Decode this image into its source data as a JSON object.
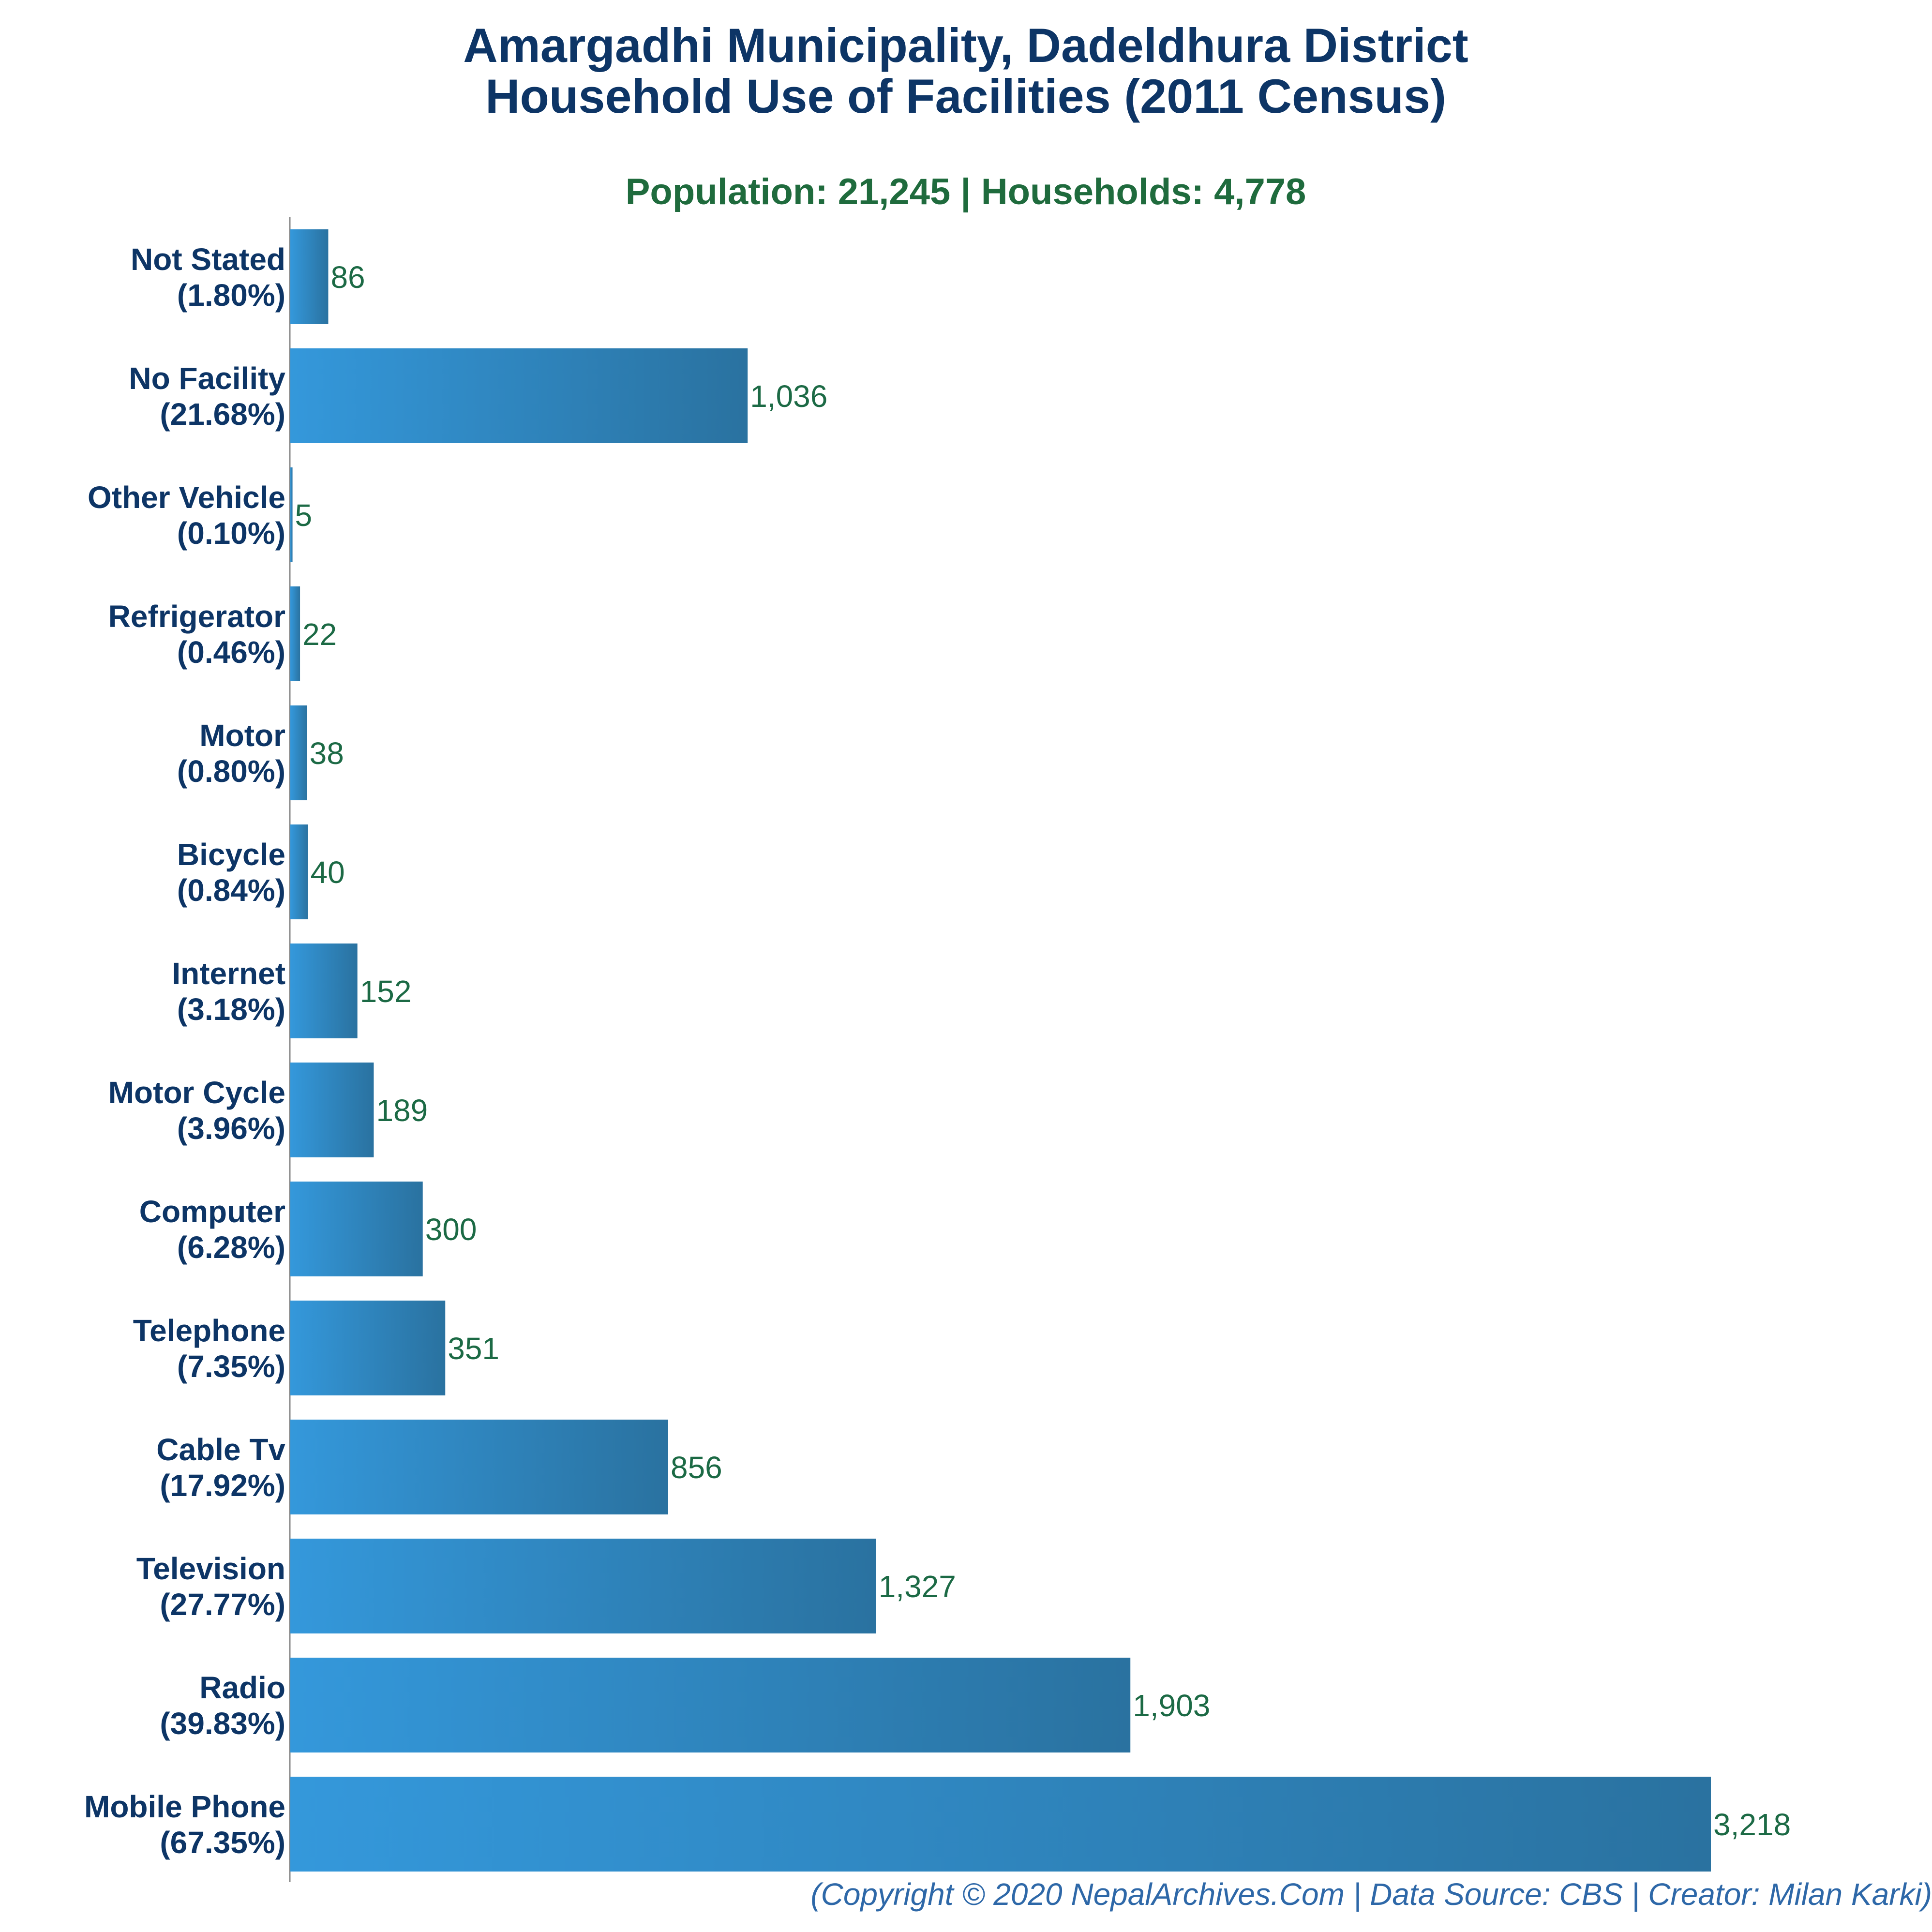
{
  "chart_data": {
    "type": "bar",
    "orientation": "horizontal",
    "title": "Amargadhi Municipality, Dadeldhura District",
    "title_line2": "Household Use of Facilities (2011 Census)",
    "subtitle": "Population: 21,245 | Households: 4,778",
    "footer": "(Copyright © 2020 NepalArchives.Com | Data Source: CBS | Creator: Milan Karki)",
    "categories": [
      "Not Stated",
      "No Facility",
      "Other Vehicle",
      "Refrigerator",
      "Motor",
      "Bicycle",
      "Internet",
      "Motor Cycle",
      "Computer",
      "Telephone",
      "Cable Tv",
      "Television",
      "Radio",
      "Mobile Phone"
    ],
    "percent_labels": [
      "(1.80%)",
      "(21.68%)",
      "(0.10%)",
      "(0.46%)",
      "(0.80%)",
      "(0.84%)",
      "(3.18%)",
      "(3.96%)",
      "(6.28%)",
      "(7.35%)",
      "(17.92%)",
      "(27.77%)",
      "(39.83%)",
      "(67.35%)"
    ],
    "values": [
      86,
      1036,
      5,
      22,
      38,
      40,
      152,
      189,
      300,
      351,
      856,
      1327,
      1903,
      3218
    ],
    "value_labels": [
      "86",
      "1,036",
      "5",
      "22",
      "38",
      "40",
      "152",
      "189",
      "300",
      "351",
      "856",
      "1,327",
      "1,903",
      "3,218"
    ],
    "xlim": [
      0,
      3218
    ],
    "grid": false,
    "legend": "none",
    "colors": {
      "bar_start": "#3498db",
      "bar_end": "#2a72a0",
      "title": "#0d3566",
      "subtitle": "#1f6b3d",
      "value": "#1c6a45",
      "footer": "#2e68a8",
      "axis": "#888888"
    }
  }
}
